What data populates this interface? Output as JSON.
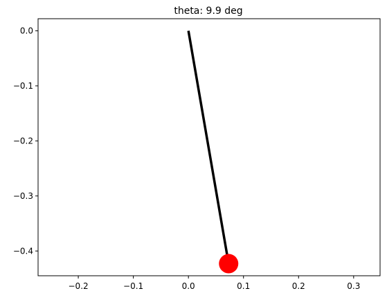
{
  "chart_data": {
    "type": "line",
    "title": "theta: 9.9 deg",
    "xlabel": "",
    "ylabel": "",
    "xlim": [
      -0.273,
      0.348
    ],
    "ylim": [
      -0.445,
      0.022
    ],
    "grid": false,
    "x_ticks": [
      -0.2,
      -0.1,
      0.0,
      0.1,
      0.2,
      0.3
    ],
    "x_tick_labels": [
      "−0.2",
      "−0.1",
      "0.0",
      "0.1",
      "0.2",
      "0.3"
    ],
    "y_ticks": [
      0.0,
      -0.1,
      -0.2,
      -0.3,
      -0.4
    ],
    "y_tick_labels": [
      "0.0",
      "−0.1",
      "−0.2",
      "−0.3",
      "−0.4"
    ],
    "series": [
      {
        "kind": "rod",
        "color": "#000000",
        "x": [
          0.0,
          0.073
        ],
        "y": [
          0.0,
          -0.423
        ]
      },
      {
        "kind": "bob",
        "color": "#ff0000",
        "x": [
          0.073
        ],
        "y": [
          -0.423
        ]
      }
    ]
  }
}
